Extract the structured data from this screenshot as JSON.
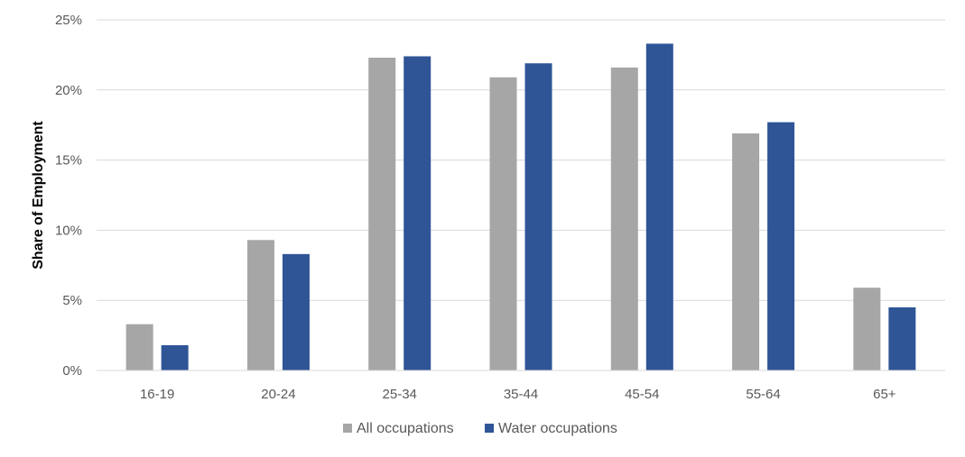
{
  "chart_data": {
    "type": "bar",
    "title": "",
    "xlabel": "",
    "ylabel": "Share of Employment",
    "categories": [
      "16-19",
      "20-24",
      "25-34",
      "35-44",
      "45-54",
      "55-64",
      "65+"
    ],
    "series": [
      {
        "name": "All occupations",
        "color": "#a6a6a6",
        "values": [
          3.3,
          9.3,
          22.3,
          20.9,
          21.6,
          16.9,
          5.9
        ]
      },
      {
        "name": "Water occupations",
        "color": "#2f5597",
        "values": [
          1.8,
          8.3,
          22.4,
          21.9,
          23.3,
          17.7,
          4.5
        ]
      }
    ],
    "ylim": [
      0,
      25
    ],
    "yticks": [
      0,
      5,
      10,
      15,
      20,
      25
    ],
    "ytick_labels": [
      "0%",
      "5%",
      "10%",
      "15%",
      "20%",
      "25%"
    ],
    "grid": true,
    "legend_position": "bottom"
  }
}
